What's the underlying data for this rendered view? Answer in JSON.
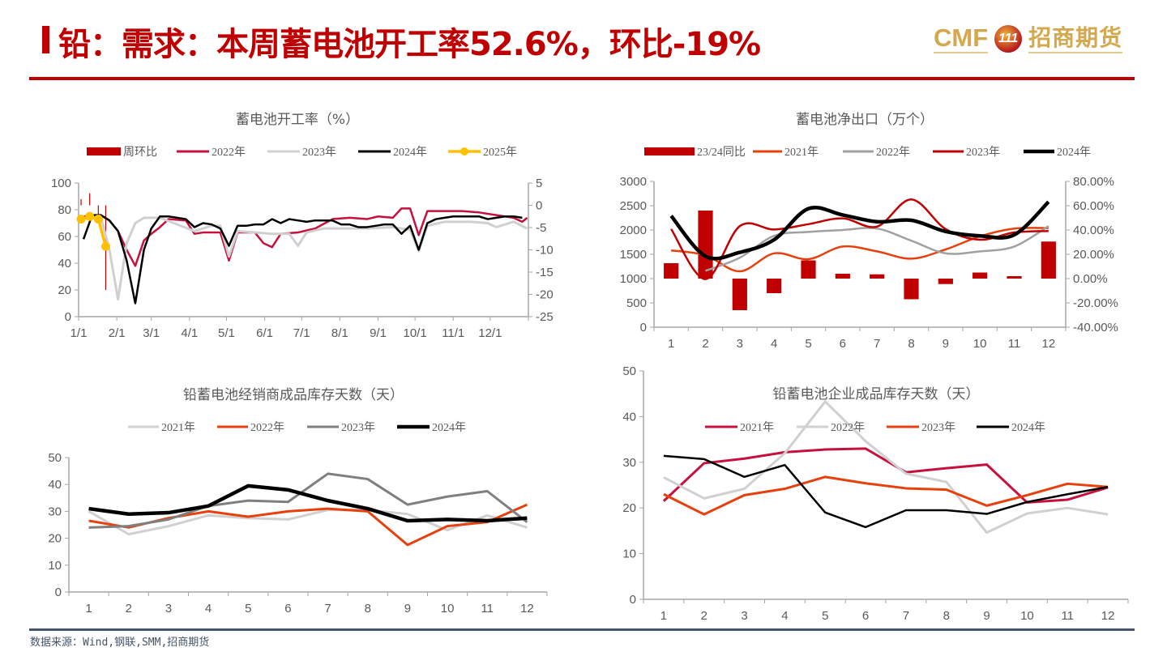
{
  "header": {
    "title": "铅：需求：本周蓄电池开工率52.6%，环比-19%",
    "logo_latin": "CMF",
    "logo_badge": "111",
    "logo_cn": "招商期货"
  },
  "footer": {
    "source": "数据来源：Wind,钢联,SMM,招商期货"
  },
  "colors": {
    "brand_red": "#c00000",
    "logo_gold": "#d3a84e",
    "rule_slate": "#44546a"
  },
  "chart_data": [
    {
      "type": "line+bar",
      "title": "蓄电池开工率（%）",
      "x_type": "date",
      "x_tick_labels": [
        "1/1",
        "2/1",
        "3/1",
        "4/1",
        "5/1",
        "6/1",
        "7/1",
        "8/1",
        "9/1",
        "10/1",
        "11/1",
        "12/1"
      ],
      "ylim_left": [
        0,
        100
      ],
      "yticks_left": [
        0,
        20,
        40,
        60,
        80,
        100
      ],
      "ylim_right": [
        -25,
        5
      ],
      "yticks_right": [
        -25,
        -20,
        -15,
        -10,
        -5,
        0,
        5
      ],
      "grid": false,
      "legend": "top",
      "bars": {
        "name": "周环比",
        "axis": "right",
        "color": "#c00000",
        "points": [
          [
            "1/3",
            1.4
          ],
          [
            "1/10",
            2.7
          ],
          [
            "1/17",
            -2.7
          ],
          [
            "1/23",
            -19.0
          ]
        ]
      },
      "series": [
        {
          "name": "2022年",
          "color": "#c8103e",
          "points": [
            [
              "1/5",
              75
            ],
            [
              "1/19",
              76
            ],
            [
              "1/26",
              72
            ],
            [
              "2/2",
              64
            ],
            [
              "2/9",
              50
            ],
            [
              "2/16",
              38
            ],
            [
              "2/23",
              57
            ],
            [
              "3/1",
              62
            ],
            [
              "3/8",
              67
            ],
            [
              "3/15",
              73
            ],
            [
              "3/29",
              72
            ],
            [
              "4/5",
              62
            ],
            [
              "4/12",
              63
            ],
            [
              "4/26",
              63
            ],
            [
              "5/3",
              42
            ],
            [
              "5/10",
              63
            ],
            [
              "5/24",
              63
            ],
            [
              "5/31",
              55
            ],
            [
              "6/7",
              52
            ],
            [
              "6/14",
              62
            ],
            [
              "6/28",
              63
            ],
            [
              "7/12",
              66
            ],
            [
              "7/26",
              73
            ],
            [
              "8/9",
              74
            ],
            [
              "8/23",
              73
            ],
            [
              "9/1",
              75
            ],
            [
              "9/13",
              74
            ],
            [
              "9/20",
              81
            ],
            [
              "9/27",
              81
            ],
            [
              "10/4",
              61
            ],
            [
              "10/11",
              79
            ],
            [
              "10/25",
              79
            ],
            [
              "11/8",
              79
            ],
            [
              "11/22",
              78
            ],
            [
              "12/6",
              76
            ],
            [
              "12/20",
              74
            ],
            [
              "12/27",
              71
            ],
            [
              "12/31",
              74
            ]
          ]
        },
        {
          "name": "2023年",
          "color": "#d0d0d0",
          "points": [
            [
              "1/5",
              73
            ],
            [
              "1/19",
              75
            ],
            [
              "1/26",
              50
            ],
            [
              "2/2",
              13
            ],
            [
              "2/9",
              55
            ],
            [
              "2/16",
              70
            ],
            [
              "2/23",
              74
            ],
            [
              "3/8",
              74
            ],
            [
              "4/5",
              64
            ],
            [
              "4/19",
              68
            ],
            [
              "4/26",
              68
            ],
            [
              "5/3",
              45
            ],
            [
              "5/10",
              64
            ],
            [
              "5/24",
              63
            ],
            [
              "6/7",
              62
            ],
            [
              "6/21",
              62
            ],
            [
              "6/28",
              53
            ],
            [
              "7/5",
              63
            ],
            [
              "7/19",
              66
            ],
            [
              "8/2",
              66
            ],
            [
              "8/23",
              66
            ],
            [
              "9/13",
              67
            ],
            [
              "9/27",
              65
            ],
            [
              "10/4",
              49
            ],
            [
              "10/11",
              68
            ],
            [
              "10/25",
              71
            ],
            [
              "11/15",
              71
            ],
            [
              "11/29",
              70
            ],
            [
              "12/6",
              67
            ],
            [
              "12/20",
              71
            ],
            [
              "12/31",
              66
            ]
          ]
        },
        {
          "name": "2024年",
          "color": "#000000",
          "points": [
            [
              "1/5",
              58
            ],
            [
              "1/12",
              76
            ],
            [
              "1/19",
              76
            ],
            [
              "1/26",
              72
            ],
            [
              "2/2",
              64
            ],
            [
              "2/9",
              42
            ],
            [
              "2/16",
              10
            ],
            [
              "2/23",
              50
            ],
            [
              "3/1",
              66
            ],
            [
              "3/8",
              75
            ],
            [
              "3/15",
              75
            ],
            [
              "3/22",
              74
            ],
            [
              "3/29",
              73
            ],
            [
              "4/5",
              67
            ],
            [
              "4/12",
              70
            ],
            [
              "4/19",
              69
            ],
            [
              "4/26",
              66
            ],
            [
              "5/3",
              53
            ],
            [
              "5/10",
              68
            ],
            [
              "5/17",
              68
            ],
            [
              "5/24",
              69
            ],
            [
              "5/31",
              69
            ],
            [
              "6/7",
              73
            ],
            [
              "6/14",
              70
            ],
            [
              "6/21",
              73
            ],
            [
              "6/28",
              72
            ],
            [
              "7/5",
              71
            ],
            [
              "7/12",
              72
            ],
            [
              "7/26",
              72
            ],
            [
              "8/2",
              69
            ],
            [
              "8/9",
              69
            ],
            [
              "8/16",
              67
            ],
            [
              "8/23",
              67
            ],
            [
              "8/30",
              68
            ],
            [
              "9/6",
              69
            ],
            [
              "9/13",
              69
            ],
            [
              "9/20",
              62
            ],
            [
              "9/27",
              68
            ],
            [
              "10/4",
              50
            ],
            [
              "10/11",
              70
            ],
            [
              "10/18",
              73
            ],
            [
              "10/25",
              74
            ],
            [
              "11/1",
              75
            ],
            [
              "11/15",
              75
            ],
            [
              "11/22",
              75
            ],
            [
              "11/29",
              73
            ],
            [
              "12/6",
              74
            ],
            [
              "12/13",
              75
            ],
            [
              "12/20",
              75
            ],
            [
              "12/27",
              74
            ]
          ]
        },
        {
          "name": "2025年",
          "color": "#ffc000",
          "markers": true,
          "points": [
            [
              "1/3",
              73
            ],
            [
              "1/10",
              75
            ],
            [
              "1/17",
              73
            ],
            [
              "1/23",
              52.6
            ]
          ]
        }
      ]
    },
    {
      "type": "line+bar",
      "title": "蓄电池净出口（万个）",
      "categories": [
        "1",
        "2",
        "3",
        "4",
        "5",
        "6",
        "7",
        "8",
        "9",
        "10",
        "11",
        "12"
      ],
      "ylim_left": [
        0,
        3000
      ],
      "yticks_left": [
        0,
        500,
        1000,
        1500,
        2000,
        2500,
        3000
      ],
      "ylim_right": [
        -40,
        80
      ],
      "yticks_right": [
        "-40.00%",
        "-20.00%",
        "0.00%",
        "20.00%",
        "40.00%",
        "60.00%",
        "80.00%"
      ],
      "smooth": true,
      "grid": false,
      "legend": "top",
      "bars": {
        "name": "23/24同比",
        "axis": "right",
        "unit": "%",
        "color": "#c00000",
        "values": [
          12.7,
          56,
          -26,
          -12,
          15,
          4,
          3.5,
          -17,
          -4.5,
          5,
          2,
          30.5
        ]
      },
      "series": [
        {
          "name": "2021年",
          "color": "#e8400c",
          "values": [
            1580,
            1480,
            1150,
            1520,
            1400,
            1660,
            1560,
            1410,
            1600,
            1870,
            2030,
            2040
          ]
        },
        {
          "name": "2022年",
          "color": "#a0a0a0",
          "values": [
            null,
            1160,
            1430,
            1880,
            1960,
            2000,
            2030,
            1780,
            1520,
            1560,
            1660,
            2080
          ]
        },
        {
          "name": "2023年",
          "color": "#c00000",
          "values": [
            2020,
            990,
            2080,
            2010,
            2120,
            2240,
            2070,
            2630,
            2020,
            1800,
            1950,
            1980
          ]
        },
        {
          "name": "2024年",
          "color": "#000000",
          "values": [
            2290,
            1460,
            1540,
            1800,
            2440,
            2310,
            2170,
            2200,
            1970,
            1880,
            1900,
            2580
          ]
        }
      ]
    },
    {
      "type": "line",
      "title": "铅蓄电池经销商成品库存天数（天）",
      "categories": [
        "1",
        "2",
        "3",
        "4",
        "5",
        "6",
        "7",
        "8",
        "9",
        "10",
        "11",
        "12"
      ],
      "ylim": [
        0,
        50
      ],
      "yticks": [
        0,
        10,
        20,
        30,
        40,
        50
      ],
      "grid": false,
      "legend": "top",
      "series": [
        {
          "name": "2021年",
          "color": "#d0d0d0",
          "values": [
            30,
            21.5,
            24.5,
            28.5,
            27.5,
            27,
            30.5,
            30.5,
            29,
            23,
            28.5,
            24
          ]
        },
        {
          "name": "2022年",
          "color": "#e8400c",
          "values": [
            26.5,
            24,
            27.5,
            30,
            28,
            30,
            31,
            30,
            17.5,
            24.5,
            26,
            32.5
          ]
        },
        {
          "name": "2023年",
          "color": "#7f7f7f",
          "values": [
            24,
            24.5,
            27,
            32,
            34,
            33.5,
            44,
            42,
            32.5,
            35.5,
            37.5,
            26
          ]
        },
        {
          "name": "2024年",
          "color": "#000000",
          "values": [
            31,
            29,
            29.5,
            32,
            39.5,
            38,
            34,
            31,
            26.5,
            27,
            26.5,
            27.5
          ]
        }
      ]
    },
    {
      "type": "line",
      "title": "铅蓄电池企业成品库存天数（天）",
      "categories": [
        "1",
        "2",
        "3",
        "4",
        "5",
        "6",
        "7",
        "8",
        "9",
        "10",
        "11",
        "12"
      ],
      "ylim": [
        0,
        50
      ],
      "yticks": [
        0,
        10,
        20,
        30,
        40,
        50
      ],
      "grid": false,
      "legend": "top",
      "series": [
        {
          "name": "2021年",
          "color": "#c8103e",
          "values": [
            21.5,
            29.8,
            30.8,
            32.2,
            32.8,
            33,
            27.8,
            28.7,
            29.5,
            21.2,
            21.8,
            24.5
          ]
        },
        {
          "name": "2022年",
          "color": "#d0d0d0",
          "values": [
            26.7,
            22.1,
            24.2,
            32,
            43.3,
            34.6,
            27.5,
            25.7,
            14.6,
            18.8,
            20,
            18.6
          ]
        },
        {
          "name": "2023年",
          "color": "#e8400c",
          "values": [
            23,
            18.6,
            22.8,
            24.2,
            26.8,
            25.4,
            24.3,
            24,
            20.5,
            22.8,
            25.3,
            24.6
          ]
        },
        {
          "name": "2024年",
          "color": "#000000",
          "values": [
            31.4,
            30.7,
            26.8,
            29.4,
            19,
            15.8,
            19.5,
            19.5,
            18.7,
            21.3,
            23,
            24.6
          ]
        }
      ]
    }
  ]
}
